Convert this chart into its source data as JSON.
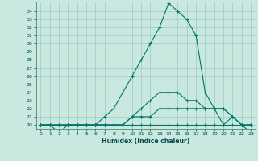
{
  "xlabel": "Humidex (Indice chaleur)",
  "ylabel": "",
  "background_color": "#c8e8e0",
  "grid_color": "#a0c8c0",
  "line_color": "#007868",
  "x_values": [
    0,
    1,
    2,
    3,
    4,
    5,
    6,
    7,
    8,
    9,
    10,
    11,
    12,
    13,
    14,
    15,
    16,
    17,
    18,
    19,
    20,
    21,
    22,
    23
  ],
  "line1_y": [
    20,
    20,
    20,
    20,
    20,
    20,
    20,
    20,
    20,
    20,
    20,
    20,
    20,
    20,
    20,
    20,
    20,
    20,
    20,
    20,
    20,
    20,
    20,
    20
  ],
  "line2_y": [
    20,
    20,
    20,
    20,
    20,
    20,
    20,
    20,
    20,
    20,
    21,
    21,
    21,
    22,
    22,
    22,
    22,
    22,
    22,
    22,
    22,
    21,
    20,
    20
  ],
  "line3_y": [
    20,
    20,
    20,
    20,
    20,
    20,
    20,
    20,
    20,
    20,
    21,
    22,
    23,
    24,
    24,
    24,
    23,
    23,
    22,
    22,
    22,
    21,
    20,
    20
  ],
  "line4_y": [
    20,
    20,
    19,
    20,
    20,
    20,
    20,
    21,
    22,
    24,
    26,
    28,
    30,
    32,
    35,
    34,
    33,
    31,
    24,
    22,
    20,
    21,
    20,
    19
  ],
  "ylim": [
    19.5,
    35.2
  ],
  "xlim": [
    -0.5,
    23.5
  ],
  "yticks": [
    20,
    21,
    22,
    23,
    24,
    25,
    26,
    27,
    28,
    29,
    30,
    31,
    32,
    33,
    34
  ],
  "xticks": [
    0,
    1,
    2,
    3,
    4,
    5,
    6,
    7,
    8,
    9,
    10,
    11,
    12,
    13,
    14,
    15,
    16,
    17,
    18,
    19,
    20,
    21,
    22,
    23
  ],
  "tick_fontsize": 4.5,
  "xlabel_fontsize": 5.5,
  "tick_color": "#004848"
}
